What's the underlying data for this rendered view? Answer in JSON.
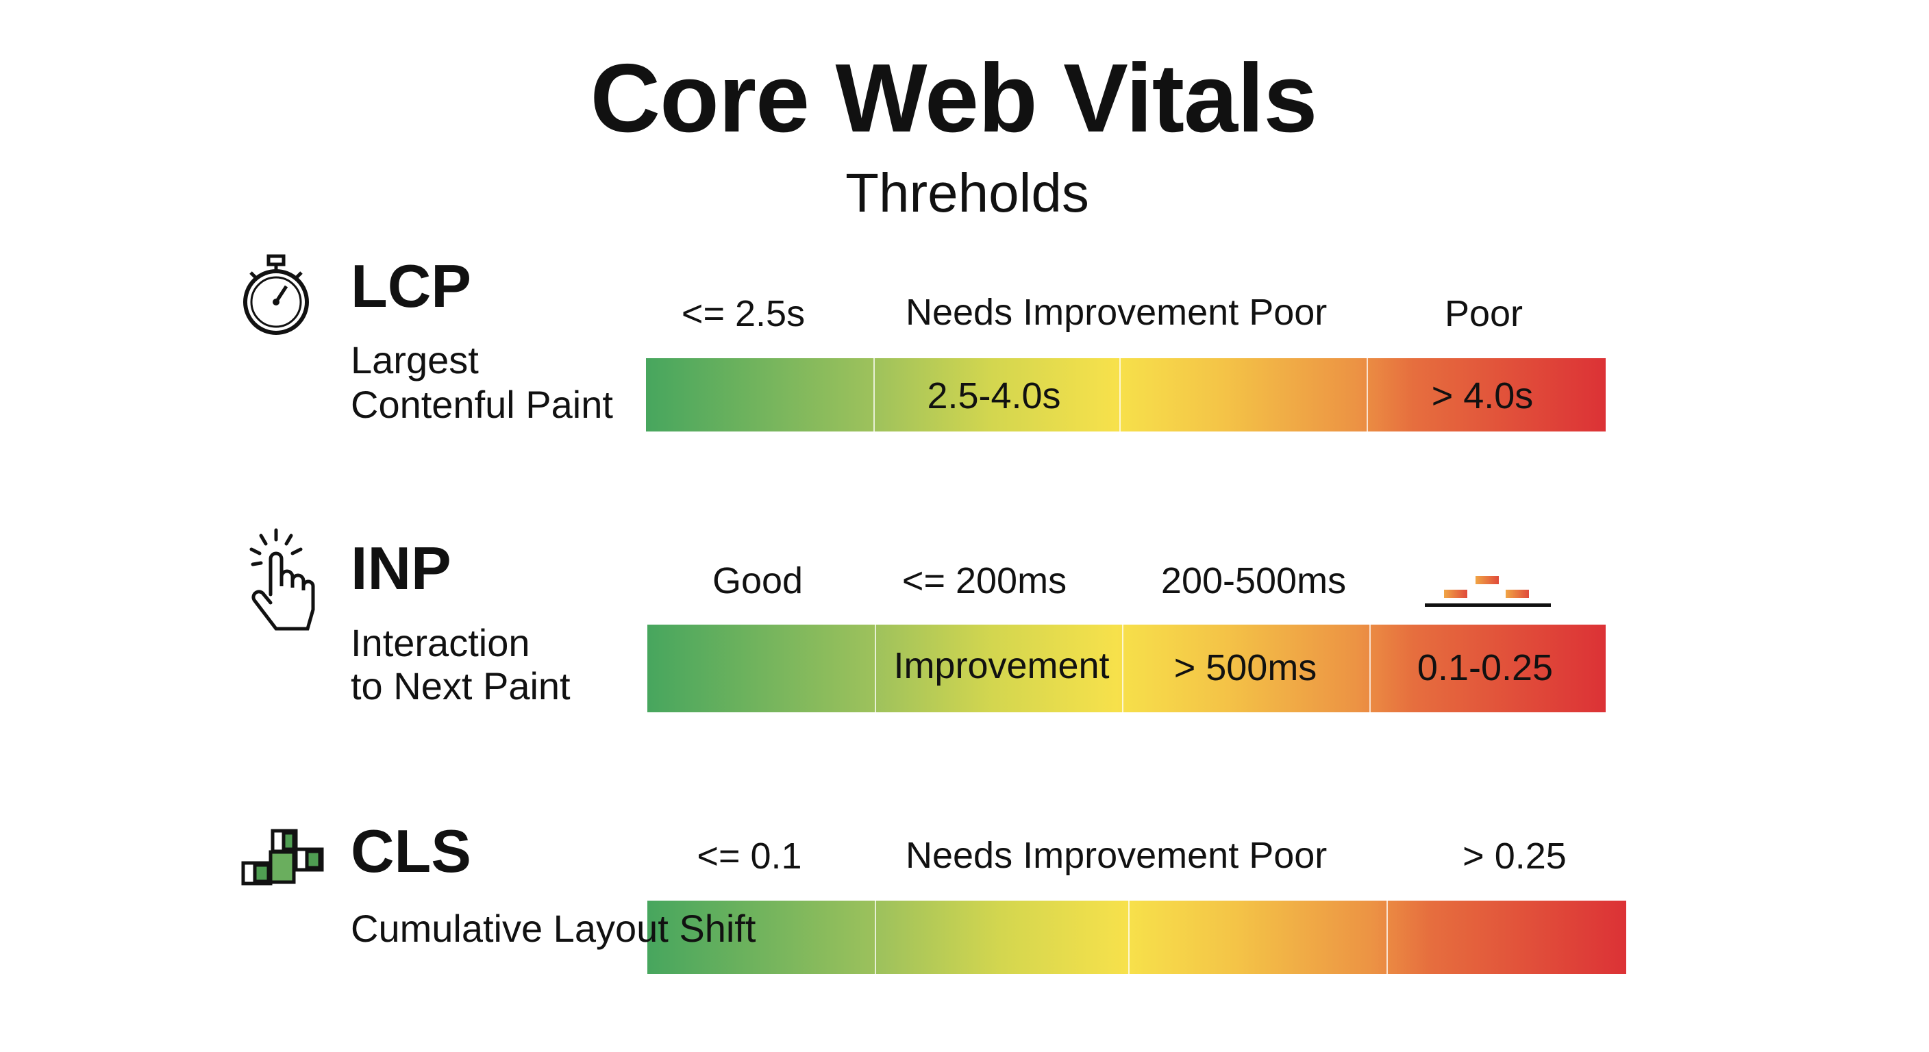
{
  "title": "Core Web Vitals",
  "subtitle": "Threholds",
  "colors": {
    "good": "#47a65e",
    "needs_improvement": "#f7e14b",
    "poor": "#dc3236"
  },
  "metrics": [
    {
      "abbr": "LCP",
      "full_lines": [
        "Largest",
        "Contenful Paint"
      ],
      "icon": "stopwatch-icon",
      "top_labels": [
        "<= 2.5s",
        "Needs Improvement Poor",
        "Poor"
      ],
      "bar_labels": [
        "",
        "2.5-4.0s",
        "",
        "> 4.0s"
      ]
    },
    {
      "abbr": "INP",
      "full_lines": [
        "Interaction",
        "to Next Paint"
      ],
      "icon": "pointer-hand-click-icon",
      "top_labels": [
        "Good",
        "<= 200ms",
        "200-500ms"
      ],
      "top_icon": "blocks-chart-icon",
      "bar_labels": [
        "",
        "Improvement",
        "> 500ms",
        "0.1-0.25"
      ]
    },
    {
      "abbr": "CLS",
      "full_lines": [
        "Cumulative Layout Shift"
      ],
      "icon": "shifting-blocks-icon",
      "top_labels": [
        "<= 0.1",
        "Needs Improvement  Poor",
        "> 0.25"
      ],
      "bar_labels": [
        "",
        "",
        "",
        ""
      ]
    }
  ]
}
